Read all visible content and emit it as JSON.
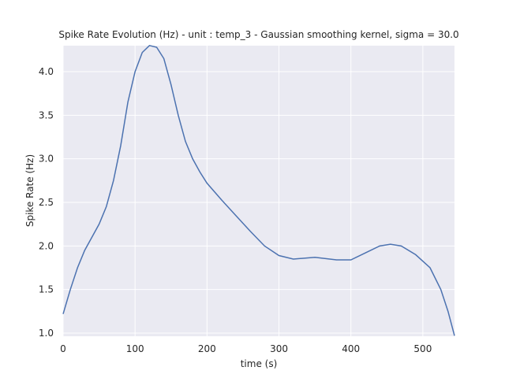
{
  "chart_data": {
    "type": "line",
    "title": "Spike Rate Evolution (Hz) - unit : temp_3 - Gaussian smoothing kernel, sigma = 30.0",
    "xlabel": "time (s)",
    "ylabel": "Spike Rate (Hz)",
    "x": [
      0,
      10,
      20,
      30,
      40,
      50,
      60,
      70,
      80,
      90,
      100,
      110,
      120,
      130,
      140,
      150,
      160,
      170,
      180,
      190,
      200,
      220,
      240,
      260,
      280,
      300,
      320,
      350,
      380,
      400,
      420,
      440,
      455,
      470,
      490,
      510,
      525,
      535,
      544
    ],
    "series": [
      {
        "name": "temp_3",
        "color": "#4c72b0",
        "values": [
          1.22,
          1.5,
          1.75,
          1.95,
          2.1,
          2.25,
          2.45,
          2.75,
          3.15,
          3.65,
          4.0,
          4.22,
          4.3,
          4.28,
          4.15,
          3.85,
          3.5,
          3.2,
          3.0,
          2.85,
          2.72,
          2.53,
          2.35,
          2.17,
          2.0,
          1.89,
          1.85,
          1.87,
          1.84,
          1.84,
          1.92,
          2.0,
          2.02,
          2.0,
          1.9,
          1.75,
          1.5,
          1.25,
          0.97
        ]
      }
    ],
    "xlim": [
      0,
      544
    ],
    "ylim": [
      0.964,
      4.298
    ],
    "xticks": [
      0,
      100,
      200,
      300,
      400,
      500
    ],
    "yticks": [
      {
        "value": 1,
        "label": "1.0"
      },
      1.5,
      {
        "value": 2,
        "label": "2.0"
      },
      2.5,
      {
        "value": 3,
        "label": "3.0"
      },
      3.5,
      {
        "value": 4,
        "label": "4.0"
      }
    ],
    "grid": true,
    "background": "#eaeaf2"
  }
}
